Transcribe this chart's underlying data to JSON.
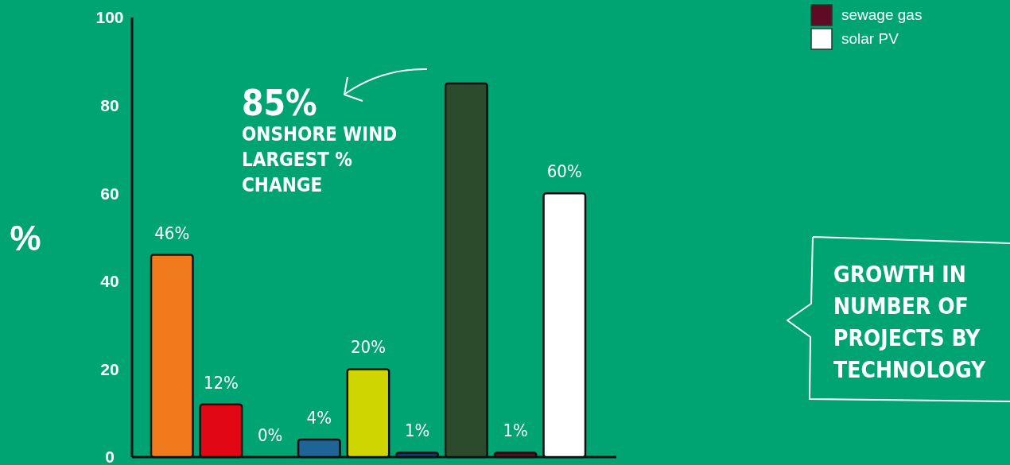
{
  "chart_data": {
    "type": "bar",
    "title": "GROWTH IN NUMBER OF PROJECTS BY TECHNOLOGY",
    "ylabel": "%",
    "stacked": true,
    "categories": [
      null,
      null,
      null,
      null,
      null,
      null,
      null,
      null,
      null
    ],
    "series": [
      {
        "color": "#f07a1c",
        "values": [
          46,
          null,
          null,
          null,
          null,
          null,
          null,
          null,
          null
        ],
        "value_labels": [
          "46%",
          null,
          null,
          null,
          null,
          null,
          null,
          null,
          null
        ]
      },
      {
        "color": "#e10714",
        "values": [
          null,
          12,
          null,
          null,
          null,
          null,
          null,
          null,
          null
        ],
        "value_labels": [
          null,
          "12%",
          null,
          null,
          null,
          null,
          null,
          null,
          null
        ]
      },
      {
        "values": [
          null,
          null,
          0,
          null,
          null,
          null,
          null,
          null,
          null
        ],
        "value_labels": [
          null,
          null,
          "0%",
          null,
          null,
          null,
          null,
          null,
          null
        ]
      },
      {
        "color": "#1f6496",
        "values": [
          null,
          null,
          null,
          4,
          null,
          null,
          null,
          null,
          null
        ],
        "value_labels": [
          null,
          null,
          null,
          "4%",
          null,
          null,
          null,
          null,
          null
        ]
      },
      {
        "color": "#cfd500",
        "values": [
          null,
          null,
          null,
          null,
          20,
          null,
          null,
          null,
          null
        ],
        "value_labels": [
          null,
          null,
          null,
          null,
          "20%",
          null,
          null,
          null,
          null
        ]
      },
      {
        "color": "#0e3a6e",
        "values": [
          null,
          null,
          null,
          null,
          null,
          1,
          null,
          null,
          null
        ],
        "value_labels": [
          null,
          null,
          null,
          null,
          null,
          "1%",
          null,
          null,
          null
        ]
      },
      {
        "color": "#2b4b2c",
        "values": [
          null,
          null,
          null,
          null,
          null,
          null,
          85,
          null,
          null
        ]
      },
      {
        "name": "sewage gas",
        "color": "#5f0b26",
        "values": [
          null,
          null,
          null,
          null,
          null,
          null,
          null,
          1,
          null
        ],
        "value_labels": [
          null,
          null,
          null,
          null,
          null,
          null,
          null,
          "1%",
          null
        ]
      },
      {
        "name": "solar PV",
        "color": "#ffffff",
        "values": [
          null,
          null,
          null,
          null,
          null,
          null,
          null,
          null,
          60
        ],
        "value_labels": [
          null,
          null,
          null,
          null,
          null,
          null,
          null,
          null,
          "60%"
        ]
      }
    ],
    "annotations": [
      "85%\nONSHORE WIND\nLARGEST %\nCHANGE"
    ],
    "ylim": [
      0,
      100
    ],
    "yticks": [
      0,
      20,
      40,
      60,
      80,
      100
    ],
    "legend": "top right",
    "tick_labels": "y"
  }
}
